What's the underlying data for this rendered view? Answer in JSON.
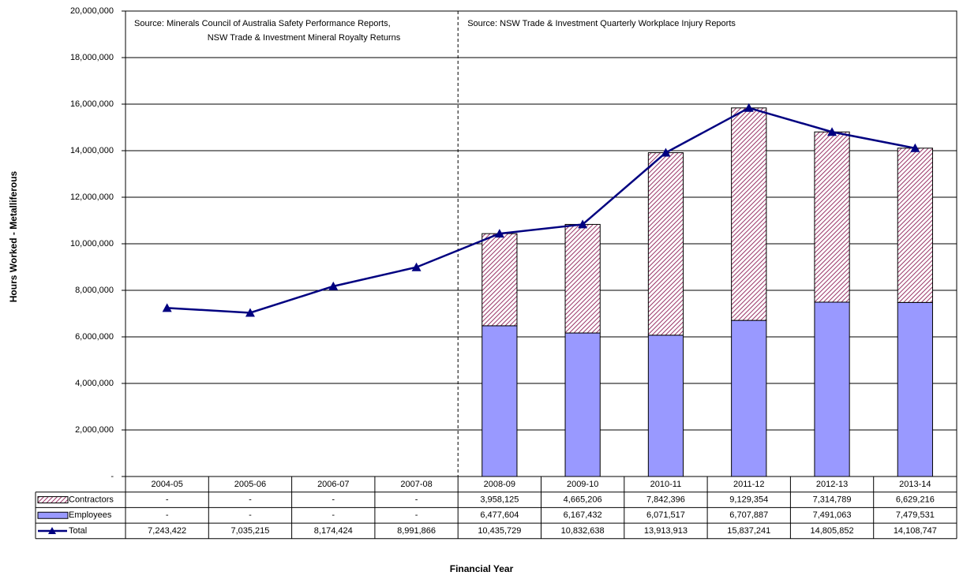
{
  "chart_data": {
    "type": "bar",
    "stacked": true,
    "x_label": "Financial Year",
    "y_label": "Hours Worked - Metalliferous",
    "annotations": [
      [
        "Source:  Minerals Council of Australia Safety Performance Reports,",
        "NSW Trade & Investment Mineral Royalty Returns"
      ],
      [
        "Source:  NSW Trade & Investment Quarterly Workplace Injury Reports"
      ]
    ],
    "divider_before": "2008-09",
    "categories": [
      "2004-05",
      "2005-06",
      "2006-07",
      "2007-08",
      "2008-09",
      "2009-10",
      "2010-11",
      "2011-12",
      "2012-13",
      "2013-14"
    ],
    "series": [
      {
        "name": "Contractors",
        "type": "bar",
        "color": "#993366",
        "pattern": "hatch",
        "values": [
          null,
          null,
          null,
          null,
          3958125,
          4665206,
          7842396,
          9129354,
          7314789,
          6629216
        ],
        "value_labels": [
          "-",
          "-",
          "-",
          "-",
          "3,958,125",
          "4,665,206",
          "7,842,396",
          "9,129,354",
          "7,314,789",
          "6,629,216"
        ]
      },
      {
        "name": "Employees",
        "type": "bar",
        "color": "#9999ff",
        "values": [
          null,
          null,
          null,
          null,
          6477604,
          6167432,
          6071517,
          6707887,
          7491063,
          7479531
        ],
        "value_labels": [
          "-",
          "-",
          "-",
          "-",
          "6,477,604",
          "6,167,432",
          "6,071,517",
          "6,707,887",
          "7,491,063",
          "7,479,531"
        ]
      },
      {
        "name": "Total",
        "type": "line",
        "color": "#000080",
        "values": [
          7243422,
          7035215,
          8174424,
          8991866,
          10435729,
          10832638,
          13913913,
          15837241,
          14805852,
          14108747
        ],
        "value_labels": [
          "7,243,422",
          "7,035,215",
          "8,174,424",
          "8,991,866",
          "10,435,729",
          "10,832,638",
          "13,913,913",
          "15,837,241",
          "14,805,852",
          "14,108,747"
        ]
      }
    ],
    "stack_order": [
      "Employees",
      "Contractors"
    ],
    "ylim": [
      0,
      20000000
    ],
    "yticks": [
      {
        "value": 0,
        "label": "-"
      },
      {
        "value": 2000000,
        "label": "2,000,000"
      },
      {
        "value": 4000000,
        "label": "4,000,000"
      },
      {
        "value": 6000000,
        "label": "6,000,000"
      },
      {
        "value": 8000000,
        "label": "8,000,000"
      },
      {
        "value": 10000000,
        "label": "10,000,000"
      },
      {
        "value": 12000000,
        "label": "12,000,000"
      },
      {
        "value": 14000000,
        "label": "14,000,000"
      },
      {
        "value": 16000000,
        "label": "16,000,000"
      },
      {
        "value": 18000000,
        "label": "18,000,000"
      },
      {
        "value": 20000000,
        "label": "20,000,000"
      }
    ],
    "grid": true
  }
}
